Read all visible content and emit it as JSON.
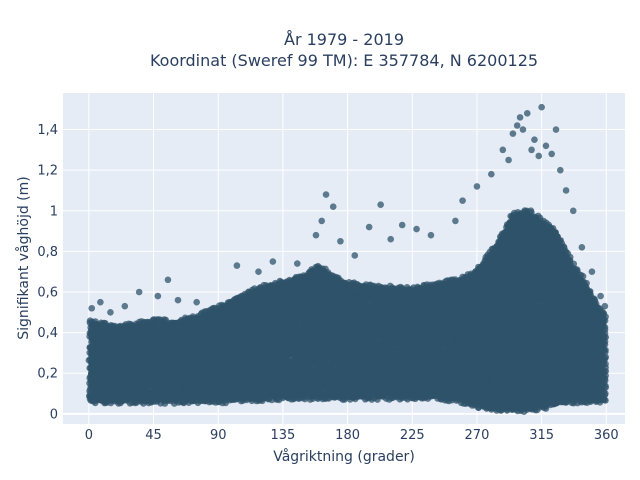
{
  "chart_data": {
    "type": "scatter",
    "title_lines": [
      "År 1979 - 2019",
      "Koordinat (Sweref 99 TM): E 357784, N 6200125"
    ],
    "xlabel": "Vågriktning (grader)",
    "ylabel": "Signifikant våghöjd (m)",
    "xlim": [
      -18,
      373
    ],
    "ylim": [
      -0.05,
      1.58
    ],
    "x_ticks": [
      0,
      45,
      90,
      135,
      180,
      225,
      270,
      315,
      360
    ],
    "x_tick_labels": [
      "0",
      "45",
      "90",
      "135",
      "180",
      "225",
      "270",
      "315",
      "360"
    ],
    "y_ticks": [
      0,
      0.2,
      0.4,
      0.6,
      0.8,
      1.0,
      1.2,
      1.4
    ],
    "y_tick_labels": [
      "0",
      "0,2",
      "0,4",
      "0,6",
      "0,8",
      "1",
      "1,2",
      "1,4"
    ],
    "grid": true,
    "marker_color": "#2f5369",
    "plot_bg": "#e5ecf6",
    "envelope": {
      "direction": [
        0,
        10,
        20,
        30,
        45,
        60,
        75,
        90,
        105,
        120,
        135,
        150,
        160,
        170,
        180,
        195,
        210,
        225,
        240,
        255,
        265,
        275,
        285,
        295,
        305,
        315,
        325,
        335,
        345,
        355,
        360
      ],
      "lower_height": [
        0.06,
        0.06,
        0.06,
        0.06,
        0.06,
        0.06,
        0.06,
        0.06,
        0.07,
        0.07,
        0.08,
        0.08,
        0.08,
        0.08,
        0.08,
        0.08,
        0.08,
        0.08,
        0.08,
        0.07,
        0.05,
        0.03,
        0.02,
        0.02,
        0.02,
        0.03,
        0.05,
        0.06,
        0.06,
        0.06,
        0.06
      ],
      "upper_height": [
        0.46,
        0.44,
        0.43,
        0.44,
        0.46,
        0.45,
        0.48,
        0.52,
        0.58,
        0.62,
        0.65,
        0.68,
        0.73,
        0.68,
        0.64,
        0.63,
        0.62,
        0.62,
        0.63,
        0.66,
        0.68,
        0.75,
        0.85,
        0.98,
        1.0,
        0.95,
        0.9,
        0.75,
        0.65,
        0.52,
        0.48
      ]
    },
    "outliers": [
      {
        "x": 2,
        "y": 0.52
      },
      {
        "x": 8,
        "y": 0.55
      },
      {
        "x": 15,
        "y": 0.5
      },
      {
        "x": 25,
        "y": 0.53
      },
      {
        "x": 35,
        "y": 0.6
      },
      {
        "x": 48,
        "y": 0.58
      },
      {
        "x": 55,
        "y": 0.66
      },
      {
        "x": 62,
        "y": 0.56
      },
      {
        "x": 75,
        "y": 0.55
      },
      {
        "x": 103,
        "y": 0.73
      },
      {
        "x": 118,
        "y": 0.7
      },
      {
        "x": 128,
        "y": 0.75
      },
      {
        "x": 145,
        "y": 0.74
      },
      {
        "x": 158,
        "y": 0.88
      },
      {
        "x": 162,
        "y": 0.95
      },
      {
        "x": 165,
        "y": 1.08
      },
      {
        "x": 170,
        "y": 1.02
      },
      {
        "x": 175,
        "y": 0.85
      },
      {
        "x": 185,
        "y": 0.78
      },
      {
        "x": 195,
        "y": 0.92
      },
      {
        "x": 203,
        "y": 1.03
      },
      {
        "x": 210,
        "y": 0.86
      },
      {
        "x": 218,
        "y": 0.93
      },
      {
        "x": 228,
        "y": 0.91
      },
      {
        "x": 238,
        "y": 0.88
      },
      {
        "x": 255,
        "y": 0.95
      },
      {
        "x": 260,
        "y": 1.05
      },
      {
        "x": 270,
        "y": 1.12
      },
      {
        "x": 280,
        "y": 1.18
      },
      {
        "x": 288,
        "y": 1.3
      },
      {
        "x": 292,
        "y": 1.25
      },
      {
        "x": 295,
        "y": 1.38
      },
      {
        "x": 298,
        "y": 1.42
      },
      {
        "x": 300,
        "y": 1.46
      },
      {
        "x": 302,
        "y": 1.4
      },
      {
        "x": 305,
        "y": 1.48
      },
      {
        "x": 308,
        "y": 1.3
      },
      {
        "x": 310,
        "y": 1.35
      },
      {
        "x": 313,
        "y": 1.27
      },
      {
        "x": 315,
        "y": 1.51
      },
      {
        "x": 318,
        "y": 1.32
      },
      {
        "x": 322,
        "y": 1.28
      },
      {
        "x": 325,
        "y": 1.4
      },
      {
        "x": 328,
        "y": 1.2
      },
      {
        "x": 332,
        "y": 1.1
      },
      {
        "x": 337,
        "y": 1.0
      },
      {
        "x": 343,
        "y": 0.82
      },
      {
        "x": 350,
        "y": 0.7
      },
      {
        "x": 356,
        "y": 0.58
      },
      {
        "x": 359,
        "y": 0.53
      }
    ]
  }
}
